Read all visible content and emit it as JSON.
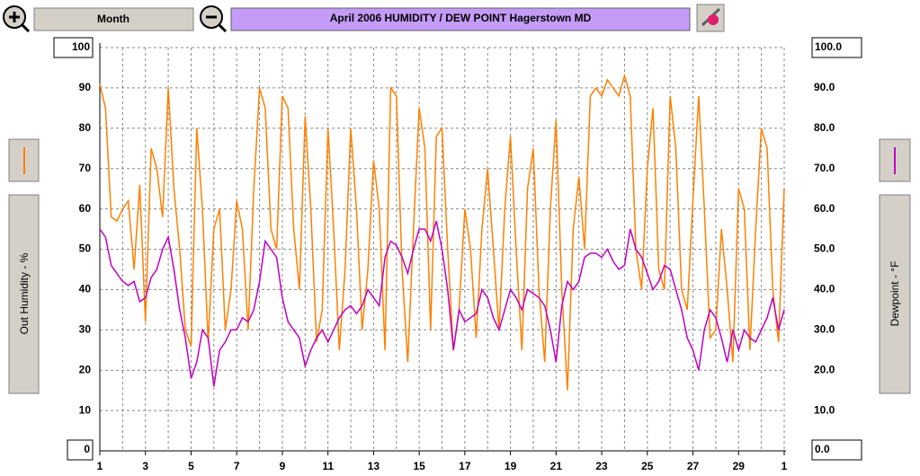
{
  "ui": {
    "period_button": "Month"
  },
  "chart_data": {
    "type": "line",
    "title": "April 2006  HUMIDITY / DEW POINT  Hagerstown MD",
    "y_label": "Out Humidity - %",
    "y2_label": "Dewpoint - °F",
    "xlim": [
      0,
      30
    ],
    "xticks": [
      {
        "value": 0,
        "label": "1"
      },
      {
        "value": 2,
        "label": "3"
      },
      {
        "value": 4,
        "label": "5"
      },
      {
        "value": 6,
        "label": "7"
      },
      {
        "value": 8,
        "label": "9"
      },
      {
        "value": 10,
        "label": "11"
      },
      {
        "value": 12,
        "label": "13"
      },
      {
        "value": 14,
        "label": "15"
      },
      {
        "value": 16,
        "label": "17"
      },
      {
        "value": 18,
        "label": "19"
      },
      {
        "value": 20,
        "label": "21"
      },
      {
        "value": 22,
        "label": "23"
      },
      {
        "value": 24,
        "label": "25"
      },
      {
        "value": 26,
        "label": "27"
      },
      {
        "value": 28,
        "label": "29"
      },
      {
        "value": 30,
        "label": "1"
      }
    ],
    "ylim": [
      0,
      100
    ],
    "yticks": [
      0,
      10,
      20,
      30,
      40,
      50,
      60,
      70,
      80,
      90,
      100
    ],
    "y2lim": [
      0,
      100
    ],
    "y2ticks": [
      {
        "value": 0,
        "label": "0.0"
      },
      {
        "value": 10,
        "label": "10.0"
      },
      {
        "value": 20,
        "label": "20.0"
      },
      {
        "value": 30,
        "label": "30.0"
      },
      {
        "value": 40,
        "label": "40.0"
      },
      {
        "value": 50,
        "label": "50.0"
      },
      {
        "value": 60,
        "label": "60.0"
      },
      {
        "value": 70,
        "label": "70.0"
      },
      {
        "value": 80,
        "label": "80.0"
      },
      {
        "value": 90,
        "label": "90.0"
      },
      {
        "value": 100,
        "label": "100.0"
      }
    ],
    "grid": true,
    "x": [
      0,
      0.25,
      0.5,
      0.75,
      1,
      1.25,
      1.5,
      1.75,
      2,
      2.25,
      2.5,
      2.75,
      3,
      3.25,
      3.5,
      3.75,
      4,
      4.25,
      4.5,
      4.75,
      5,
      5.25,
      5.5,
      5.75,
      6,
      6.25,
      6.5,
      6.75,
      7,
      7.25,
      7.5,
      7.75,
      8,
      8.25,
      8.5,
      8.75,
      9,
      9.25,
      9.5,
      9.75,
      10,
      10.25,
      10.5,
      10.75,
      11,
      11.25,
      11.5,
      11.75,
      12,
      12.25,
      12.5,
      12.75,
      13,
      13.25,
      13.5,
      13.75,
      14,
      14.25,
      14.5,
      14.75,
      15,
      15.25,
      15.5,
      15.75,
      16,
      16.25,
      16.5,
      16.75,
      17,
      17.25,
      17.5,
      17.75,
      18,
      18.25,
      18.5,
      18.75,
      19,
      19.25,
      19.5,
      19.75,
      20,
      20.25,
      20.5,
      20.75,
      21,
      21.25,
      21.5,
      21.75,
      22,
      22.25,
      22.5,
      22.75,
      23,
      23.25,
      23.5,
      23.75,
      24,
      24.25,
      24.5,
      24.75,
      25,
      25.25,
      25.5,
      25.75,
      26,
      26.25,
      26.5,
      26.75,
      27,
      27.25,
      27.5,
      27.75,
      28,
      28.25,
      28.5,
      28.75,
      29,
      29.25,
      29.5,
      29.75,
      30
    ],
    "series": [
      {
        "name": "Out Humidity",
        "color": "#ff8000",
        "axis": "y",
        "values": [
          91,
          85,
          58,
          57,
          60,
          62,
          45,
          66,
          32,
          75,
          70,
          58,
          90,
          65,
          50,
          30,
          26,
          80,
          60,
          27,
          55,
          60,
          30,
          40,
          62,
          55,
          30,
          65,
          90,
          85,
          55,
          50,
          88,
          85,
          55,
          40,
          83,
          60,
          27,
          35,
          80,
          55,
          25,
          45,
          80,
          60,
          30,
          45,
          72,
          60,
          25,
          90,
          88,
          45,
          22,
          55,
          85,
          75,
          30,
          78,
          80,
          50,
          25,
          35,
          60,
          50,
          28,
          55,
          70,
          50,
          30,
          60,
          78,
          50,
          25,
          65,
          75,
          40,
          22,
          60,
          82,
          40,
          15,
          55,
          68,
          50,
          88,
          90,
          88,
          92,
          90,
          88,
          93,
          88,
          50,
          40,
          70,
          85,
          45,
          40,
          88,
          75,
          40,
          35,
          62,
          88,
          60,
          28,
          30,
          55,
          40,
          22,
          65,
          60,
          25,
          55,
          80,
          75,
          40,
          27,
          65
        ]
      },
      {
        "name": "Dewpoint",
        "color": "#c000c0",
        "axis": "y2",
        "values": [
          55,
          53,
          46,
          44,
          42,
          41,
          42,
          37,
          38,
          43,
          45,
          50,
          53,
          45,
          35,
          28,
          18,
          22,
          30,
          28,
          16,
          25,
          27,
          30,
          30,
          33,
          32,
          35,
          42,
          52,
          50,
          48,
          38,
          32,
          30,
          28,
          21,
          25,
          28,
          30,
          27,
          30,
          33,
          35,
          36,
          34,
          36,
          40,
          38,
          36,
          48,
          52,
          51,
          48,
          44,
          50,
          55,
          55,
          52,
          57,
          50,
          40,
          25,
          35,
          32,
          33,
          34,
          40,
          38,
          33,
          30,
          35,
          40,
          38,
          35,
          40,
          39,
          38,
          36,
          30,
          22,
          36,
          42,
          40,
          42,
          48,
          49,
          49,
          48,
          50,
          47,
          45,
          46,
          55,
          50,
          48,
          44,
          40,
          42,
          46,
          45,
          40,
          35,
          28,
          25,
          20,
          30,
          35,
          33,
          28,
          22,
          30,
          25,
          30,
          28,
          27,
          30,
          33,
          38,
          30,
          35
        ]
      }
    ]
  }
}
